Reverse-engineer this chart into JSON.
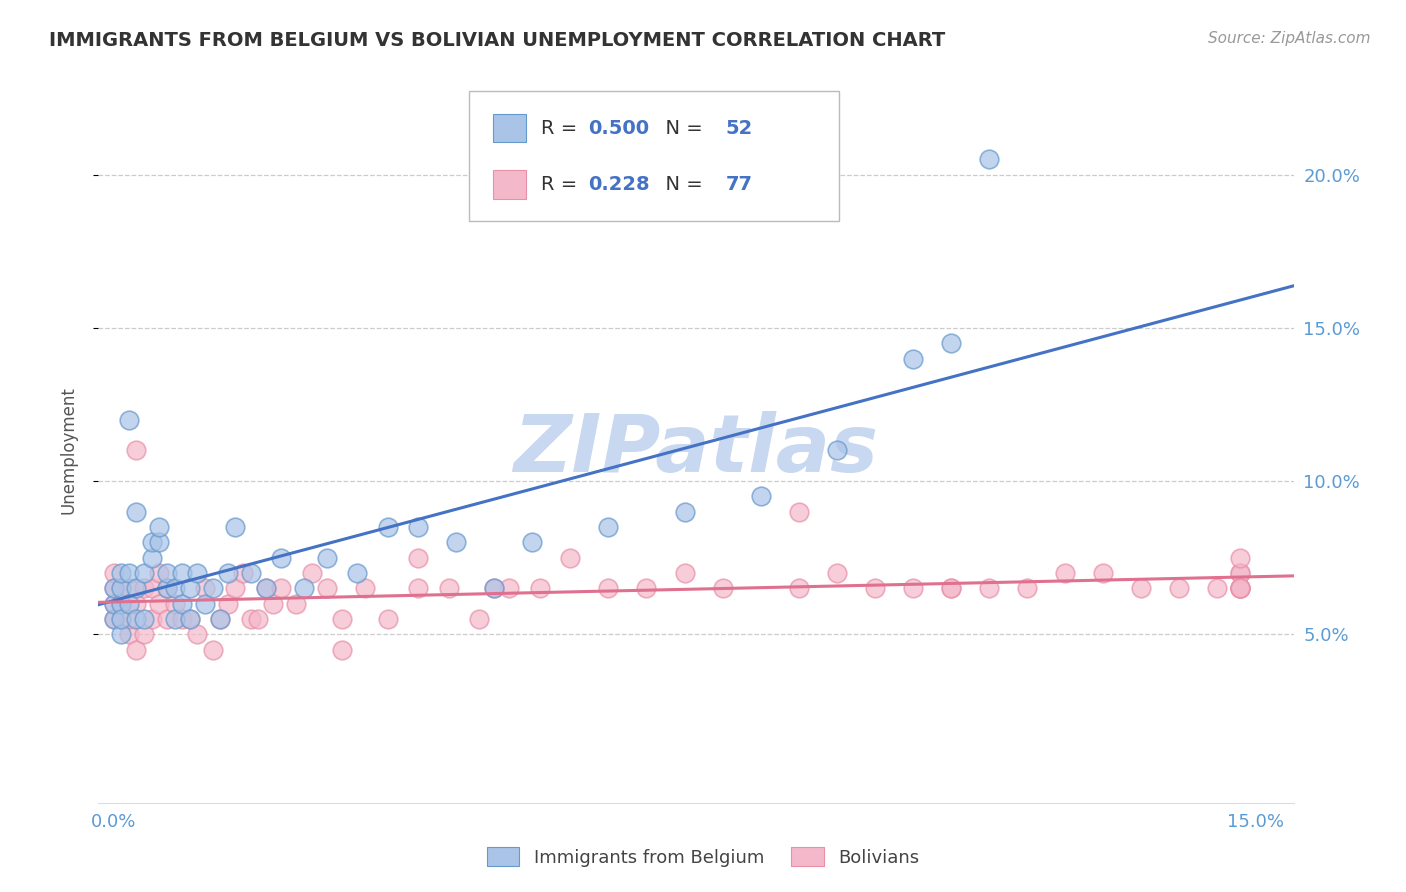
{
  "title": "IMMIGRANTS FROM BELGIUM VS BOLIVIAN UNEMPLOYMENT CORRELATION CHART",
  "source_text": "Source: ZipAtlas.com",
  "watermark": "ZIPatlas",
  "ylabel": "Unemployment",
  "xlim": [
    -0.002,
    0.155
  ],
  "ylim": [
    -0.005,
    0.225
  ],
  "y_ticks": [
    0.05,
    0.1,
    0.15,
    0.2
  ],
  "y_tick_labels": [
    "5.0%",
    "10.0%",
    "15.0%",
    "20.0%"
  ],
  "x_ticks": [
    0.0,
    0.15
  ],
  "x_tick_labels": [
    "0.0%",
    "15.0%"
  ],
  "blue_R": 0.5,
  "blue_N": 52,
  "pink_R": 0.228,
  "pink_N": 77,
  "blue_marker_color": "#aac4e8",
  "pink_marker_color": "#f4b8cb",
  "blue_edge_color": "#6699cc",
  "pink_edge_color": "#e890a8",
  "blue_line_color": "#4472c4",
  "pink_line_color": "#e07090",
  "legend_label_blue": "Immigrants from Belgium",
  "legend_label_pink": "Bolivians",
  "bg_color": "#ffffff",
  "grid_color": "#cccccc",
  "title_color": "#333333",
  "axis_tick_color": "#5b9bd5",
  "ylabel_color": "#555555",
  "watermark_color": "#c8d8f0",
  "source_color": "#999999",
  "legend_R_color": "#4472c4",
  "legend_N_color": "#4472c4",
  "legend_text_color": "#333333",
  "blue_scatter_x": [
    0.0,
    0.0,
    0.0,
    0.001,
    0.001,
    0.001,
    0.001,
    0.001,
    0.002,
    0.002,
    0.002,
    0.003,
    0.003,
    0.003,
    0.004,
    0.004,
    0.005,
    0.005,
    0.006,
    0.006,
    0.007,
    0.007,
    0.008,
    0.008,
    0.009,
    0.009,
    0.01,
    0.01,
    0.011,
    0.012,
    0.013,
    0.014,
    0.015,
    0.016,
    0.018,
    0.02,
    0.022,
    0.025,
    0.028,
    0.032,
    0.036,
    0.04,
    0.045,
    0.05,
    0.055,
    0.065,
    0.075,
    0.085,
    0.095,
    0.105,
    0.11,
    0.115
  ],
  "blue_scatter_y": [
    0.055,
    0.06,
    0.065,
    0.05,
    0.06,
    0.065,
    0.055,
    0.07,
    0.06,
    0.07,
    0.12,
    0.055,
    0.065,
    0.09,
    0.055,
    0.07,
    0.075,
    0.08,
    0.08,
    0.085,
    0.065,
    0.07,
    0.055,
    0.065,
    0.06,
    0.07,
    0.055,
    0.065,
    0.07,
    0.06,
    0.065,
    0.055,
    0.07,
    0.085,
    0.07,
    0.065,
    0.075,
    0.065,
    0.075,
    0.07,
    0.085,
    0.085,
    0.08,
    0.065,
    0.08,
    0.085,
    0.09,
    0.095,
    0.11,
    0.14,
    0.145,
    0.205
  ],
  "pink_scatter_x": [
    0.0,
    0.0,
    0.0,
    0.0,
    0.001,
    0.001,
    0.001,
    0.002,
    0.002,
    0.002,
    0.003,
    0.003,
    0.003,
    0.004,
    0.004,
    0.005,
    0.005,
    0.006,
    0.006,
    0.007,
    0.007,
    0.008,
    0.009,
    0.01,
    0.011,
    0.012,
    0.013,
    0.014,
    0.015,
    0.016,
    0.017,
    0.018,
    0.019,
    0.02,
    0.021,
    0.022,
    0.024,
    0.026,
    0.028,
    0.03,
    0.033,
    0.036,
    0.04,
    0.044,
    0.048,
    0.052,
    0.056,
    0.06,
    0.065,
    0.07,
    0.08,
    0.09,
    0.095,
    0.1,
    0.105,
    0.11,
    0.115,
    0.12,
    0.125,
    0.13,
    0.135,
    0.14,
    0.145,
    0.148,
    0.148,
    0.148,
    0.148,
    0.148,
    0.148,
    0.148,
    0.148,
    0.03,
    0.04,
    0.05,
    0.075,
    0.09,
    0.11
  ],
  "pink_scatter_y": [
    0.055,
    0.06,
    0.065,
    0.07,
    0.055,
    0.06,
    0.065,
    0.05,
    0.055,
    0.065,
    0.045,
    0.06,
    0.11,
    0.05,
    0.065,
    0.055,
    0.065,
    0.06,
    0.07,
    0.055,
    0.065,
    0.06,
    0.055,
    0.055,
    0.05,
    0.065,
    0.045,
    0.055,
    0.06,
    0.065,
    0.07,
    0.055,
    0.055,
    0.065,
    0.06,
    0.065,
    0.06,
    0.07,
    0.065,
    0.055,
    0.065,
    0.055,
    0.065,
    0.065,
    0.055,
    0.065,
    0.065,
    0.075,
    0.065,
    0.065,
    0.065,
    0.065,
    0.07,
    0.065,
    0.065,
    0.065,
    0.065,
    0.065,
    0.07,
    0.07,
    0.065,
    0.065,
    0.065,
    0.07,
    0.065,
    0.065,
    0.065,
    0.07,
    0.065,
    0.065,
    0.075,
    0.045,
    0.075,
    0.065,
    0.07,
    0.09,
    0.065
  ]
}
